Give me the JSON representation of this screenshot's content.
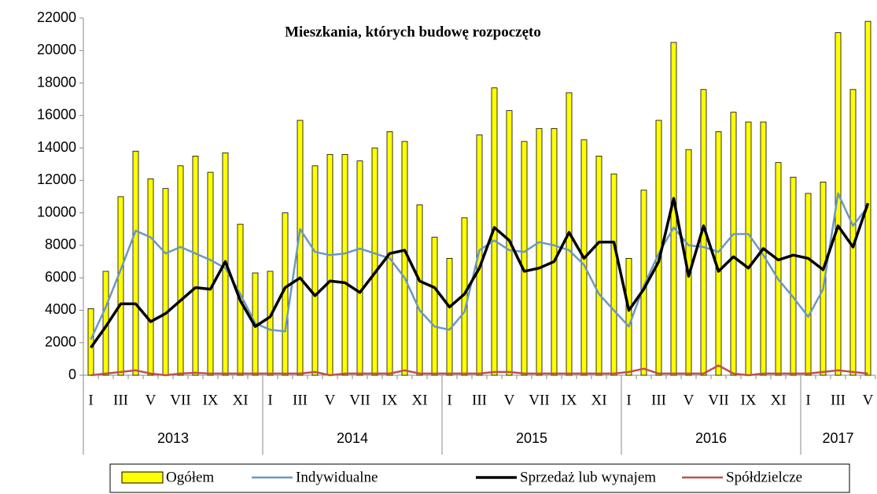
{
  "chart_data": {
    "type": "combo",
    "title": "Mieszkania, których budowę rozpoczęto",
    "categories": [
      "I",
      null,
      "III",
      null,
      "V",
      null,
      "VII",
      null,
      "IX",
      null,
      "XI",
      null,
      "I",
      null,
      "III",
      null,
      "V",
      null,
      "VII",
      null,
      "IX",
      null,
      "XI",
      null,
      "I",
      null,
      "III",
      null,
      "V",
      null,
      "VII",
      null,
      "IX",
      null,
      "XI",
      null,
      "I",
      null,
      "III",
      null,
      "V",
      null,
      "VII",
      null,
      "IX",
      null,
      "XI",
      null,
      "I",
      null,
      "III",
      null,
      "V"
    ],
    "years": [
      "2013",
      "2014",
      "2015",
      "2016",
      "2017"
    ],
    "series": [
      {
        "name": "Ogółem",
        "type": "bar",
        "color": "#ffff00",
        "values": [
          4100,
          6400,
          11000,
          13800,
          12100,
          11500,
          12900,
          13500,
          12500,
          13700,
          9300,
          6300,
          6400,
          10000,
          15700,
          12900,
          13600,
          13600,
          13200,
          14000,
          15000,
          14400,
          10500,
          8500,
          7200,
          9700,
          14800,
          17700,
          16300,
          14400,
          15200,
          15200,
          17400,
          14500,
          13500,
          12400,
          7200,
          11400,
          15700,
          20500,
          13900,
          17600,
          15000,
          16200,
          15600,
          15600,
          13100,
          12200,
          11200,
          11900,
          21100,
          17600,
          21800
        ]
      },
      {
        "name": "Indywidualne",
        "type": "line",
        "color": "#6c98c0",
        "values": [
          2200,
          4200,
          6500,
          8900,
          8500,
          7500,
          7900,
          7500,
          7100,
          6600,
          5000,
          3200,
          2800,
          2700,
          9000,
          7600,
          7400,
          7500,
          7800,
          7500,
          7200,
          6000,
          4000,
          3000,
          2800,
          3900,
          7700,
          8300,
          7700,
          7600,
          8200,
          8000,
          7700,
          6800,
          5000,
          4000,
          3000,
          5500,
          7500,
          9100,
          8000,
          7900,
          7600,
          8700,
          8700,
          7400,
          5900,
          4800,
          3600,
          5300,
          11200,
          9200,
          10400
        ]
      },
      {
        "name": "Sprzedaż lub wynajem",
        "type": "line",
        "color": "#000000",
        "values": [
          1700,
          3000,
          4400,
          4400,
          3300,
          3800,
          4600,
          5400,
          5300,
          7000,
          4600,
          3000,
          3600,
          5400,
          6000,
          4900,
          5800,
          5700,
          5100,
          6300,
          7500,
          7700,
          5800,
          5400,
          4200,
          5000,
          6600,
          9100,
          8300,
          6400,
          6600,
          7000,
          8800,
          7200,
          8200,
          8200,
          4000,
          5300,
          7000,
          10900,
          6100,
          9200,
          6400,
          7300,
          6600,
          7800,
          7100,
          7400,
          7200,
          6500,
          9200,
          7900,
          10600
        ]
      },
      {
        "name": "Spółdzielcze",
        "type": "line",
        "color": "#c0504d",
        "values": [
          0,
          100,
          200,
          300,
          100,
          0,
          100,
          150,
          100,
          100,
          100,
          100,
          100,
          100,
          100,
          200,
          0,
          100,
          100,
          100,
          100,
          300,
          100,
          100,
          100,
          100,
          100,
          200,
          200,
          100,
          100,
          100,
          100,
          100,
          100,
          100,
          200,
          400,
          100,
          100,
          100,
          100,
          600,
          100,
          0,
          100,
          100,
          100,
          100,
          200,
          300,
          200,
          100
        ]
      }
    ],
    "ylim": [
      0,
      22000
    ],
    "yticks": [
      0,
      2000,
      4000,
      6000,
      8000,
      10000,
      12000,
      14000,
      16000,
      18000,
      20000,
      22000
    ]
  }
}
